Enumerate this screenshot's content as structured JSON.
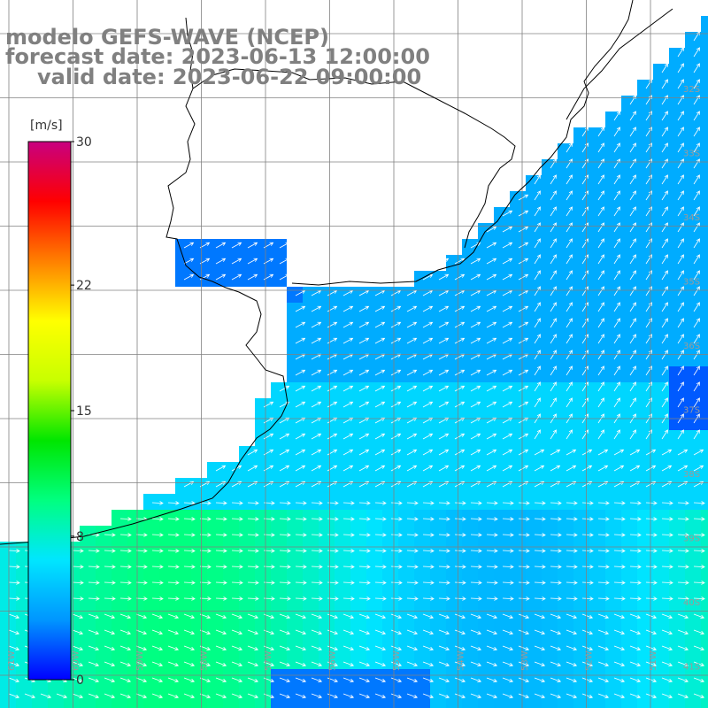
{
  "header": {
    "model_line": "modelo GEFS-WAVE (NCEP)",
    "forecast_line": "forecast date: 2023-06-13 12:00:00",
    "valid_line": "valid date: 2023-06-22 09:00:00"
  },
  "colorbar": {
    "unit": "[m/s]",
    "ticks": [
      {
        "label": "30",
        "value": 30
      },
      {
        "label": "22",
        "value": 22
      },
      {
        "label": "15",
        "value": 15
      },
      {
        "label": "8",
        "value": 8
      },
      {
        "label": "0",
        "value": 0
      }
    ],
    "min": 0,
    "max": 30,
    "colors": [
      "#0000ff",
      "#0096ff",
      "#00e6ff",
      "#00ff80",
      "#00e600",
      "#c8ff00",
      "#ffff00",
      "#ff8000",
      "#ff0000",
      "#c80080"
    ]
  },
  "map": {
    "lat_labels": [
      "32S",
      "33S",
      "34S",
      "35S",
      "36S",
      "37S",
      "38S",
      "39S",
      "40S",
      "41S"
    ],
    "lon_labels": [
      "61W",
      "60W",
      "59W",
      "58W",
      "57W",
      "56W",
      "55W",
      "54W",
      "53W",
      "52W",
      "51W"
    ]
  },
  "colors": {
    "land": "#ffffff",
    "grid": "#808080",
    "coast": "#000000",
    "arrows": "#ffffff",
    "header_text": "#808080"
  }
}
